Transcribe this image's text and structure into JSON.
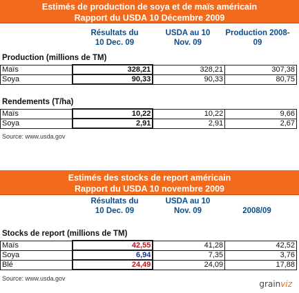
{
  "table1": {
    "title_line1": "Estimés de production de soya et de maïs américain",
    "title_line2": "Rapport du USDA 10 Décembre 2009",
    "col1": "Résultats du\n10 Dec. 09",
    "col2": "USDA au 10\nNov. 09",
    "col3": "Production 2008-\n09",
    "section1": "Production (millions de TM)",
    "production": [
      {
        "label": "Maïs",
        "v1": "328,21",
        "v2": "328,21",
        "v3": "307,38"
      },
      {
        "label": "Soya",
        "v1": "90,33",
        "v2": "90,33",
        "v3": "80,75"
      }
    ],
    "section2": "Rendements (T/ha)",
    "rendements": [
      {
        "label": "Maïs",
        "v1": "10,22",
        "v2": "10,22",
        "v3": "9,66"
      },
      {
        "label": "Soya",
        "v1": "2,91",
        "v2": "2,91",
        "v3": "2,67"
      }
    ],
    "source": "Source: www.usda.gov"
  },
  "table2": {
    "title_line1": "Estimés des stocks de report américain",
    "title_line2": "Rapport du USDA 10 novembre 2009",
    "col1": "Résultats du\n10 Dec. 09",
    "col2": "USDA au 10\nNov. 09",
    "col3": "2008/09",
    "section1": "Stocks de report (millions de TM)",
    "stocks": [
      {
        "label": "Maïs",
        "v1": "42,55",
        "v2": "41,28",
        "v3": "42,52",
        "color": "red"
      },
      {
        "label": "Soya",
        "v1": "6,94",
        "v2": "7,35",
        "v3": "3,76",
        "color": "blue"
      },
      {
        "label": "Blé",
        "v1": "24,49",
        "v2": "24,09",
        "v3": "17,88",
        "color": "red"
      }
    ],
    "source": "Source: www.usda.gov"
  },
  "logo": {
    "text_a": "grain",
    "text_b": "viz"
  },
  "colors": {
    "banner": "#f26a1b",
    "header_text": "#0b4d8c",
    "red_value": "#c0141b",
    "blue_value": "#1d2f8f"
  }
}
